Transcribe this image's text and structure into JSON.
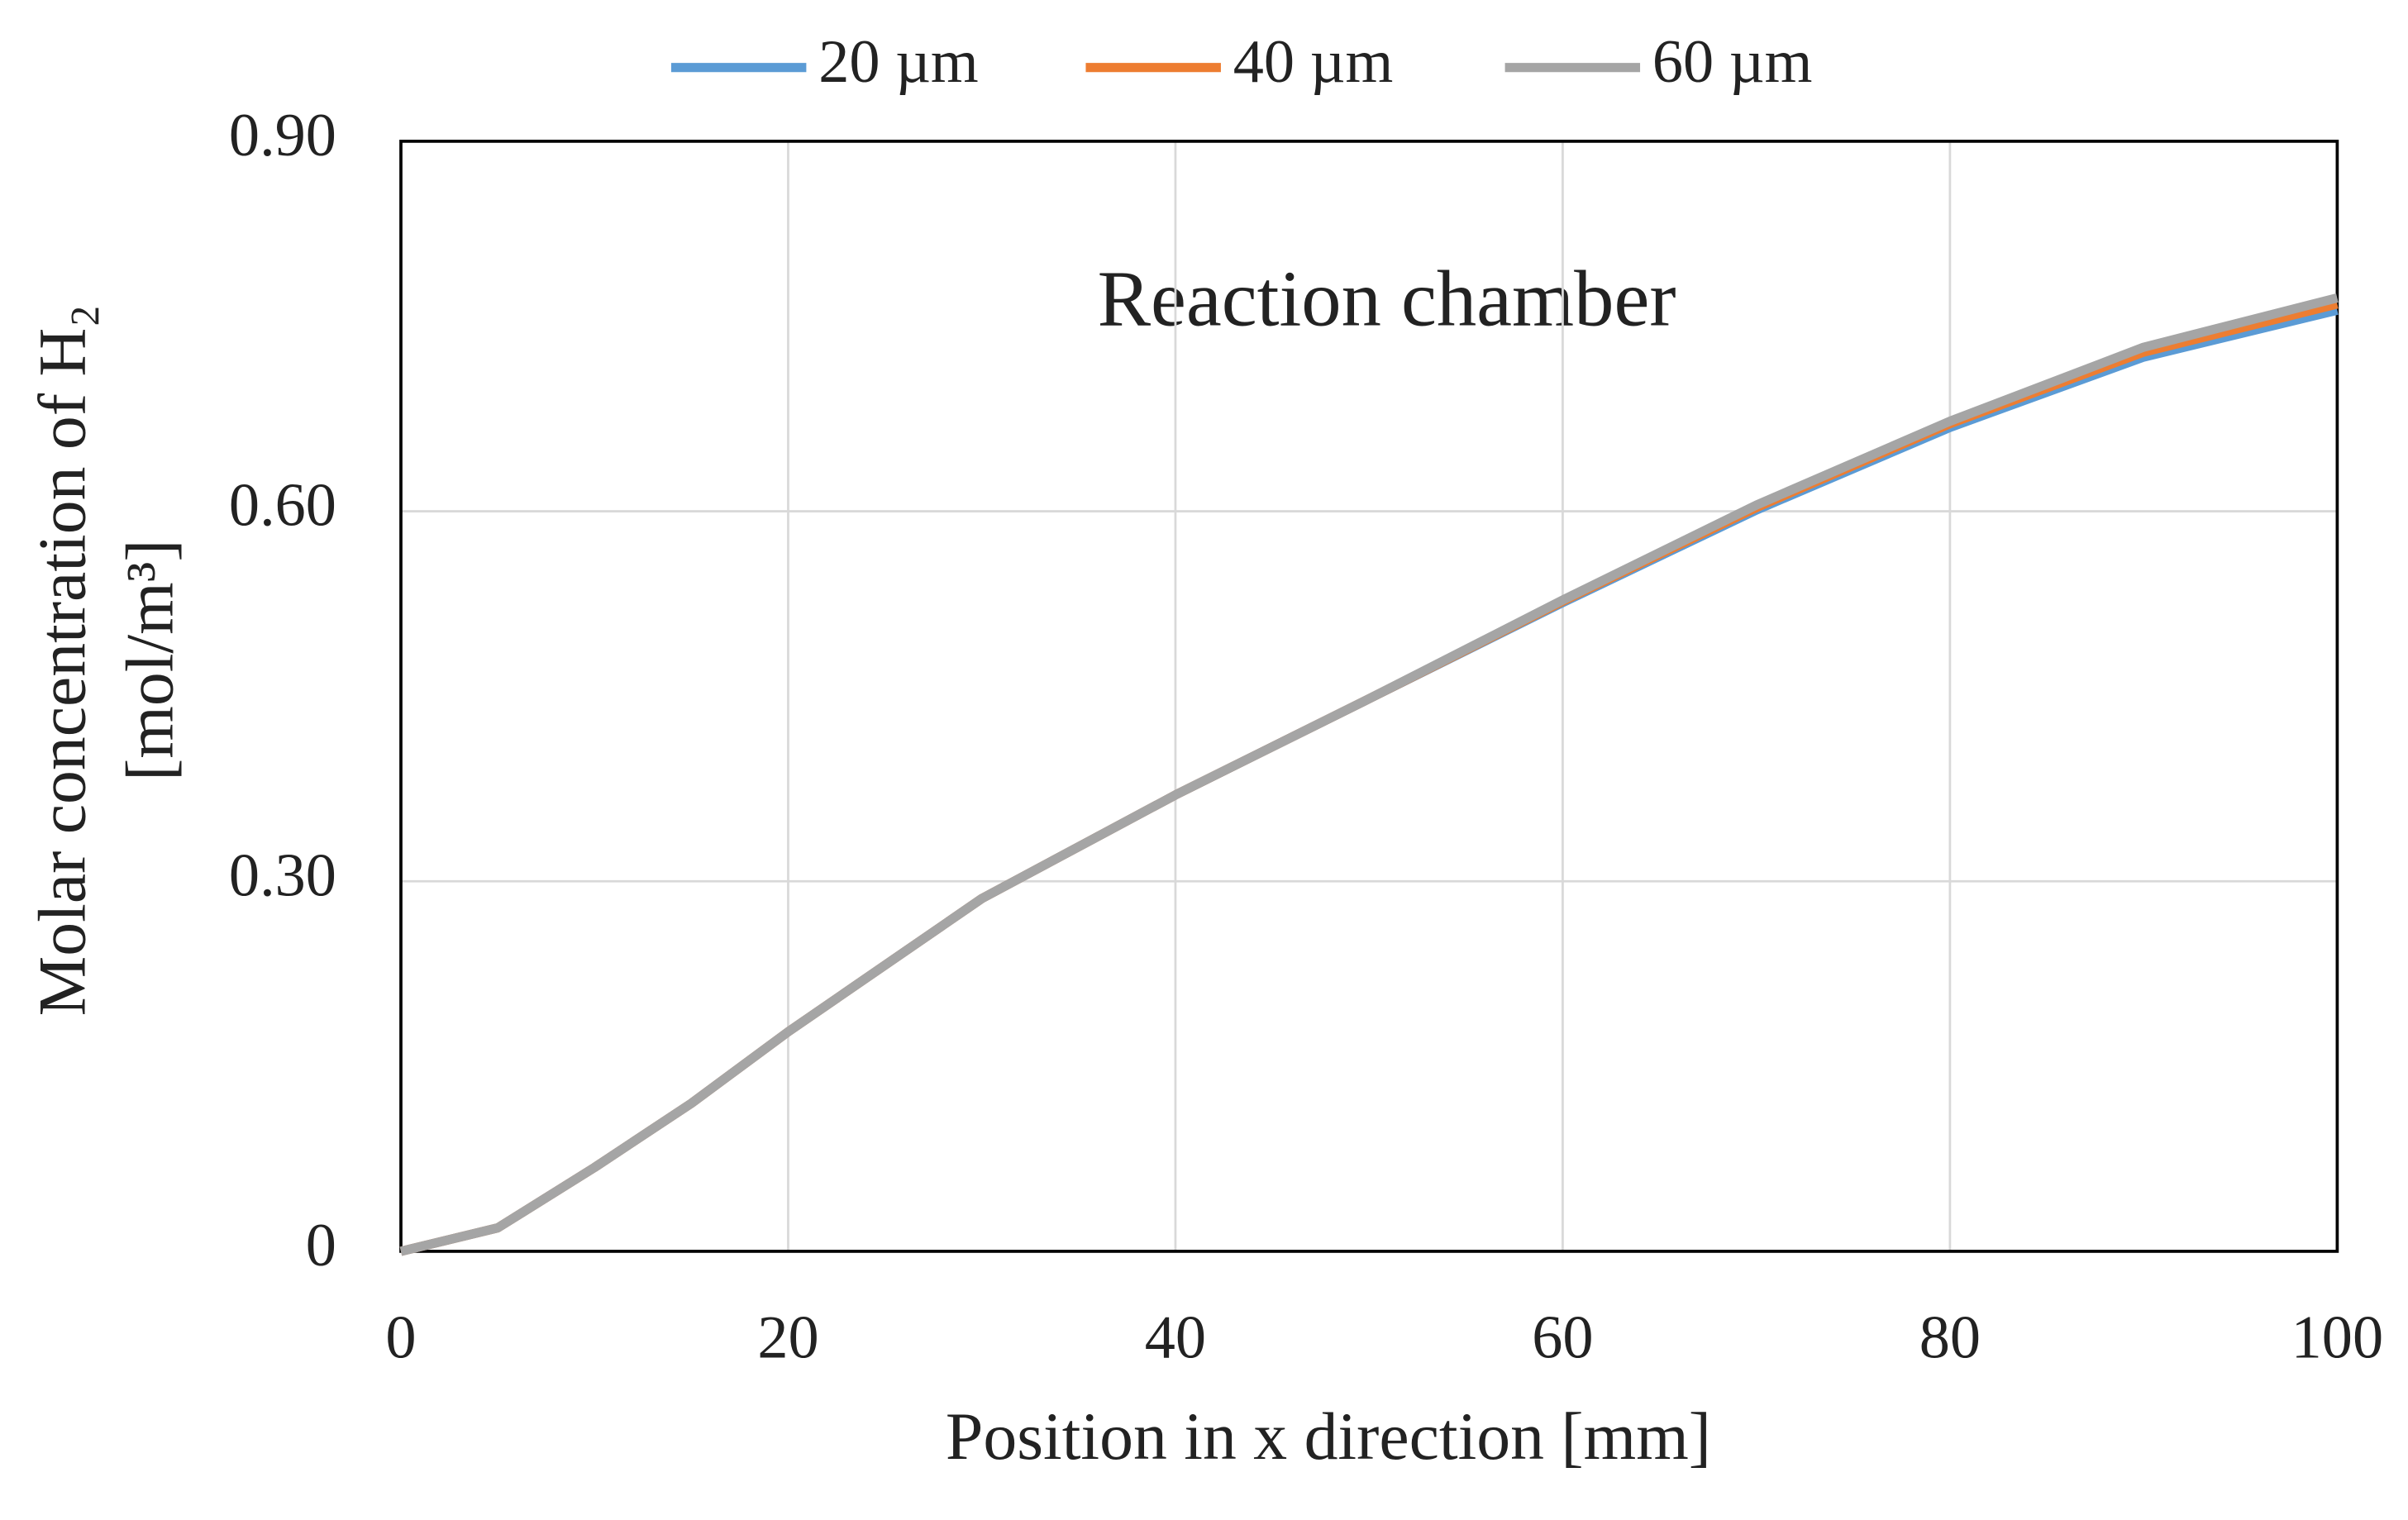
{
  "chart_data": {
    "type": "line",
    "annotation": "Reaction chamber",
    "xlabel": "Position in x direction [mm]",
    "ylabel": [
      "Molar concentration of H₂",
      "[mol/m³]"
    ],
    "x": [
      0,
      5,
      10,
      15,
      20,
      30,
      40,
      50,
      60,
      70,
      80,
      90,
      100
    ],
    "series": [
      {
        "name": "20 µm",
        "color": "#5b9bd5",
        "values": [
          0,
          0.019,
          0.068,
          0.12,
          0.178,
          0.286,
          0.37,
          0.448,
          0.526,
          0.601,
          0.668,
          0.725,
          0.763
        ]
      },
      {
        "name": "40 µm",
        "color": "#ed7d31",
        "values": [
          0,
          0.019,
          0.068,
          0.12,
          0.178,
          0.286,
          0.37,
          0.448,
          0.527,
          0.603,
          0.671,
          0.729,
          0.768
        ]
      },
      {
        "name": "60 µm",
        "color": "#a5a5a5",
        "values": [
          0,
          0.019,
          0.068,
          0.12,
          0.178,
          0.286,
          0.37,
          0.448,
          0.528,
          0.605,
          0.673,
          0.733,
          0.773
        ]
      }
    ],
    "xlim": [
      0,
      100
    ],
    "xticks": [
      0,
      20,
      40,
      60,
      80,
      100
    ],
    "ylim": [
      0,
      0.9
    ],
    "yticks": [
      0,
      {
        "value": 0.3,
        "label": "0.30"
      },
      {
        "value": 0.6,
        "label": "0.60"
      },
      {
        "value": 0.9,
        "label": "0.90"
      }
    ],
    "grid": true,
    "legend": "top"
  }
}
